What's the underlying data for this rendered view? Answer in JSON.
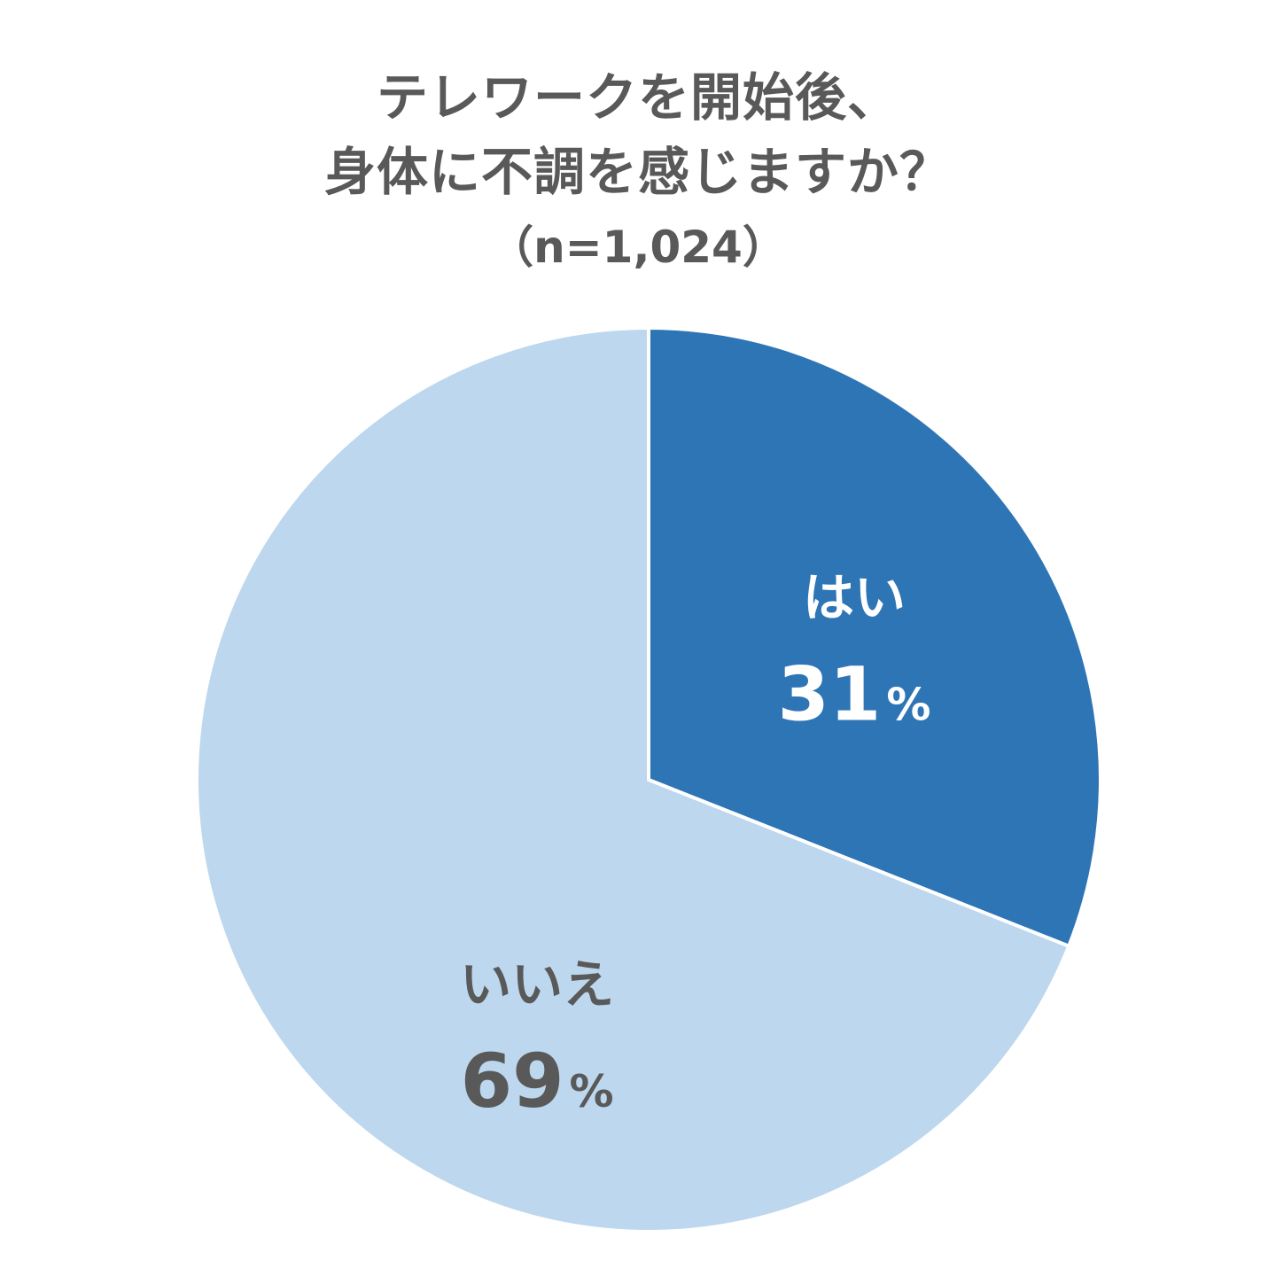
{
  "chart_data": {
    "type": "pie",
    "title_lines": [
      "テレワークを開始後、",
      "身体に不調を感じますか？"
    ],
    "subtitle": "（n=1,024）",
    "slices": [
      {
        "label": "はい",
        "value": 31,
        "value_text": "31",
        "unit": "%",
        "color": "#2e75b6",
        "text_color": "#ffffff"
      },
      {
        "label": "いいえ",
        "value": 69,
        "value_text": "69",
        "unit": "%",
        "color": "#bdd7ee",
        "text_color": "#595959"
      }
    ],
    "start": "12 o'clock",
    "direction": "clockwise"
  }
}
